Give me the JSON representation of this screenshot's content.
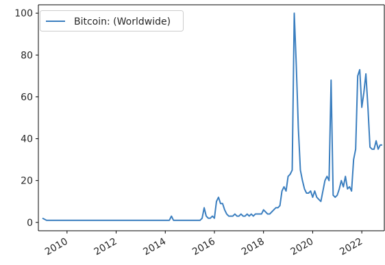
{
  "chart_data": {
    "type": "line",
    "series": [
      {
        "name": "Bitcoin: (Worldwide)",
        "color": "#3a7ebf",
        "points": [
          [
            "2009-01-01",
            2
          ],
          [
            "2009-03-01",
            1
          ],
          [
            "2009-06-01",
            1
          ],
          [
            "2010-01-01",
            1
          ],
          [
            "2011-01-01",
            1
          ],
          [
            "2012-01-01",
            1
          ],
          [
            "2013-01-01",
            1
          ],
          [
            "2014-01-01",
            1
          ],
          [
            "2014-03-01",
            1
          ],
          [
            "2014-04-01",
            3
          ],
          [
            "2014-05-01",
            1
          ],
          [
            "2014-06-01",
            1
          ],
          [
            "2015-01-01",
            1
          ],
          [
            "2015-06-01",
            1
          ],
          [
            "2015-07-01",
            2
          ],
          [
            "2015-08-01",
            7
          ],
          [
            "2015-09-01",
            3
          ],
          [
            "2015-10-01",
            2
          ],
          [
            "2015-11-01",
            2
          ],
          [
            "2015-12-01",
            3
          ],
          [
            "2016-01-01",
            2
          ],
          [
            "2016-02-01",
            10
          ],
          [
            "2016-03-01",
            12
          ],
          [
            "2016-04-01",
            9
          ],
          [
            "2016-05-01",
            9
          ],
          [
            "2016-06-01",
            6
          ],
          [
            "2016-07-01",
            4
          ],
          [
            "2016-08-01",
            3
          ],
          [
            "2016-09-01",
            3
          ],
          [
            "2016-10-01",
            3
          ],
          [
            "2016-11-01",
            4
          ],
          [
            "2016-12-01",
            3
          ],
          [
            "2017-01-01",
            3
          ],
          [
            "2017-02-01",
            4
          ],
          [
            "2017-03-01",
            3
          ],
          [
            "2017-04-01",
            3
          ],
          [
            "2017-05-01",
            4
          ],
          [
            "2017-06-01",
            3
          ],
          [
            "2017-07-01",
            4
          ],
          [
            "2017-08-01",
            3
          ],
          [
            "2017-09-01",
            4
          ],
          [
            "2017-10-01",
            4
          ],
          [
            "2017-11-01",
            4
          ],
          [
            "2017-12-01",
            4
          ],
          [
            "2018-01-01",
            6
          ],
          [
            "2018-02-01",
            5
          ],
          [
            "2018-03-01",
            4
          ],
          [
            "2018-04-01",
            4
          ],
          [
            "2018-05-01",
            5
          ],
          [
            "2018-06-01",
            6
          ],
          [
            "2018-07-01",
            7
          ],
          [
            "2018-08-01",
            7
          ],
          [
            "2018-09-01",
            8
          ],
          [
            "2018-10-01",
            15
          ],
          [
            "2018-11-01",
            17
          ],
          [
            "2018-12-01",
            15
          ],
          [
            "2019-01-01",
            22
          ],
          [
            "2019-02-01",
            23
          ],
          [
            "2019-03-01",
            25
          ],
          [
            "2019-04-01",
            100
          ],
          [
            "2019-05-01",
            75
          ],
          [
            "2019-06-01",
            45
          ],
          [
            "2019-07-01",
            25
          ],
          [
            "2019-08-01",
            20
          ],
          [
            "2019-09-01",
            16
          ],
          [
            "2019-10-01",
            14
          ],
          [
            "2019-11-01",
            14
          ],
          [
            "2019-12-01",
            15
          ],
          [
            "2020-01-01",
            12
          ],
          [
            "2020-02-01",
            15
          ],
          [
            "2020-03-01",
            12
          ],
          [
            "2020-04-01",
            11
          ],
          [
            "2020-05-01",
            10
          ],
          [
            "2020-06-01",
            15
          ],
          [
            "2020-07-01",
            20
          ],
          [
            "2020-08-01",
            22
          ],
          [
            "2020-09-01",
            20
          ],
          [
            "2020-10-01",
            68
          ],
          [
            "2020-11-01",
            13
          ],
          [
            "2020-12-01",
            12
          ],
          [
            "2021-01-01",
            13
          ],
          [
            "2021-02-01",
            16
          ],
          [
            "2021-03-01",
            20
          ],
          [
            "2021-04-01",
            17
          ],
          [
            "2021-05-01",
            22
          ],
          [
            "2021-06-01",
            16
          ],
          [
            "2021-07-01",
            17
          ],
          [
            "2021-08-01",
            15
          ],
          [
            "2021-09-01",
            30
          ],
          [
            "2021-10-01",
            35
          ],
          [
            "2021-11-01",
            70
          ],
          [
            "2021-12-01",
            73
          ],
          [
            "2022-01-01",
            55
          ],
          [
            "2022-02-01",
            62
          ],
          [
            "2022-03-01",
            71
          ],
          [
            "2022-04-01",
            55
          ],
          [
            "2022-05-01",
            36
          ],
          [
            "2022-06-01",
            35
          ],
          [
            "2022-07-01",
            35
          ],
          [
            "2022-08-01",
            39
          ],
          [
            "2022-09-01",
            35
          ],
          [
            "2022-10-01",
            37
          ],
          [
            "2022-11-01",
            37
          ]
        ]
      }
    ],
    "x_axis": {
      "min": "2008-11-01",
      "max": "2022-12-01",
      "ticks": [
        "2010",
        "2012",
        "2014",
        "2016",
        "2018",
        "2020",
        "2022"
      ]
    },
    "y_axis": {
      "min": -4,
      "max": 104,
      "ticks": [
        "0",
        "20",
        "40",
        "60",
        "80",
        "100"
      ]
    },
    "legend": {
      "position": "top-left",
      "label": "Bitcoin: (Worldwide)"
    },
    "grid": false
  }
}
